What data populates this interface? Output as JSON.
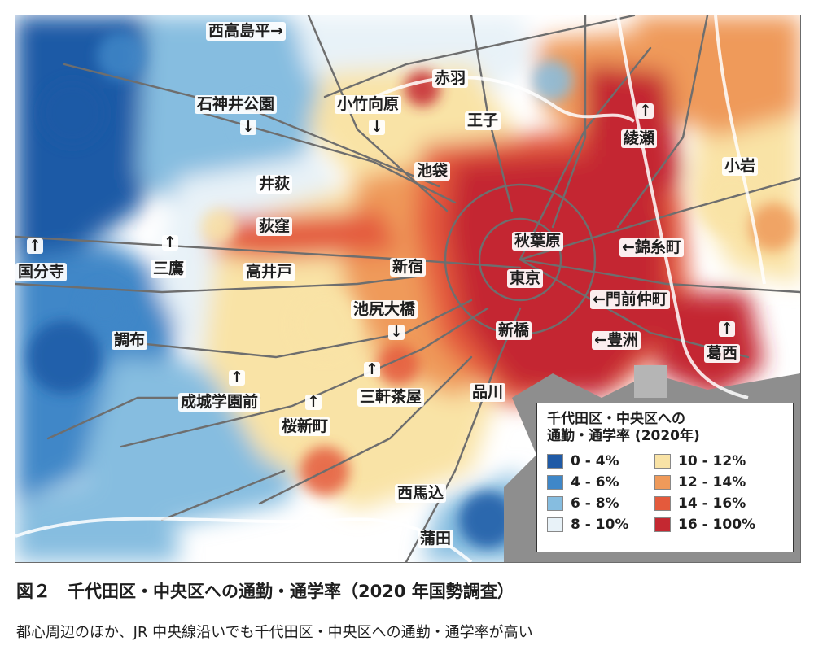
{
  "colors": {
    "band_0_4": "#1f5aa6",
    "band_4_6": "#3f87c8",
    "band_6_8": "#86bde0",
    "band_8_10": "#e8f2f8",
    "band_10_12": "#f9e3a6",
    "band_12_14": "#ef9a5a",
    "band_14_16": "#e45a3c",
    "band_16_100": "#c42831",
    "bay": "#8e8e8e",
    "rail": "#6e6e6e"
  },
  "places": [
    {
      "id": "nishitakashimadaira",
      "label": "西高島平",
      "arrow": "→"
    },
    {
      "id": "akabane",
      "label": "赤羽"
    },
    {
      "id": "shakujii-koen",
      "label": "石神井公園",
      "arrow": "↓"
    },
    {
      "id": "komukaihara",
      "label": "小竹向原",
      "arrow": "↓"
    },
    {
      "id": "oji",
      "label": "王子"
    },
    {
      "id": "ayase",
      "label": "綾瀬",
      "arrow": "↑"
    },
    {
      "id": "koiwa",
      "label": "小岩"
    },
    {
      "id": "ikebukuro",
      "label": "池袋"
    },
    {
      "id": "iogi",
      "label": "井荻"
    },
    {
      "id": "ogikubo",
      "label": "荻窪"
    },
    {
      "id": "akihabara",
      "label": "秋葉原"
    },
    {
      "id": "kinshicho",
      "label": "錦糸町",
      "arrow": "←"
    },
    {
      "id": "kokubunji",
      "label": "国分寺",
      "arrow": "↑"
    },
    {
      "id": "mitaka",
      "label": "三鷹",
      "arrow": "↑"
    },
    {
      "id": "takaido",
      "label": "高井戸"
    },
    {
      "id": "shinjuku",
      "label": "新宿"
    },
    {
      "id": "tokyo",
      "label": "東京"
    },
    {
      "id": "monzen-nakacho",
      "label": "門前仲町",
      "arrow": "←"
    },
    {
      "id": "ikejiri-ohashi",
      "label": "池尻大橋",
      "arrow": "↓"
    },
    {
      "id": "chofu",
      "label": "調布"
    },
    {
      "id": "shimbashi",
      "label": "新橋"
    },
    {
      "id": "toyosu",
      "label": "豊洲",
      "arrow": "←"
    },
    {
      "id": "kasai",
      "label": "葛西",
      "arrow": "↑"
    },
    {
      "id": "seijo-gakuen-mae",
      "label": "成城学園前",
      "arrow": "↑"
    },
    {
      "id": "sangenjaya",
      "label": "三軒茶屋",
      "arrow": "↑"
    },
    {
      "id": "shinagawa",
      "label": "品川"
    },
    {
      "id": "sakurashinmachi",
      "label": "桜新町",
      "arrow": "↑"
    },
    {
      "id": "nishi-magome",
      "label": "西馬込"
    },
    {
      "id": "kamata",
      "label": "蒲田"
    }
  ],
  "legend": {
    "title_line1": "千代田区・中央区への",
    "title_line2": "通勤・通学率 (2020年)",
    "items": [
      {
        "label": "0 - 4%",
        "color": "#1f5aa6"
      },
      {
        "label": "10 - 12%",
        "color": "#f9e3a6"
      },
      {
        "label": "4 - 6%",
        "color": "#3f87c8"
      },
      {
        "label": "12 - 14%",
        "color": "#ef9a5a"
      },
      {
        "label": "6 - 8%",
        "color": "#86bde0"
      },
      {
        "label": "14 - 16%",
        "color": "#e45a3c"
      },
      {
        "label": "8 - 10%",
        "color": "#e8f2f8"
      },
      {
        "label": "16 - 100%",
        "color": "#c42831"
      }
    ]
  },
  "caption": {
    "title": "図２　千代田区・中央区への通勤・通学率（2020 年国勢調査）",
    "subtitle": "都心周辺のほか、JR 中央線沿いでも千代田区・中央区への通勤・通学率が高い"
  }
}
